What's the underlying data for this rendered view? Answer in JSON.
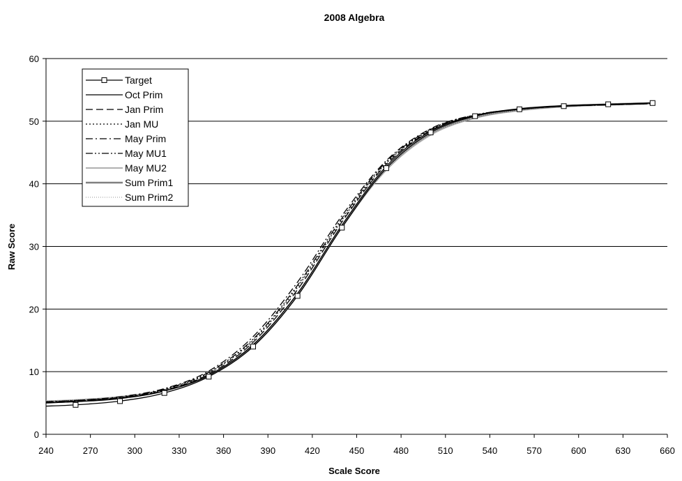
{
  "chart_data": {
    "type": "line",
    "title": "2008 Algebra",
    "xlabel": "Scale Score",
    "ylabel": "Raw Score",
    "xlim": [
      240,
      660
    ],
    "ylim": [
      0,
      60
    ],
    "xticks": [
      240,
      270,
      300,
      330,
      360,
      390,
      420,
      450,
      480,
      510,
      540,
      570,
      600,
      630,
      660
    ],
    "yticks": [
      0,
      10,
      20,
      30,
      40,
      50,
      60
    ],
    "grid": "horizontal",
    "legend_position": "top-left",
    "x": [
      240,
      260,
      290,
      320,
      350,
      380,
      410,
      440,
      470,
      500,
      530,
      560,
      590,
      620,
      650
    ],
    "series": [
      {
        "name": "Target",
        "style": "solid-square-markers",
        "color": "#000000",
        "values": [
          4.5,
          4.7,
          5.3,
          6.6,
          9.2,
          14.0,
          22.1,
          33.0,
          42.5,
          48.2,
          50.8,
          51.9,
          52.4,
          52.7,
          52.9
        ]
      },
      {
        "name": "Oct Prim",
        "style": "solid",
        "color": "#000000",
        "values": [
          5.0,
          5.2,
          5.7,
          6.9,
          9.4,
          14.3,
          22.5,
          33.4,
          42.8,
          48.4,
          50.9,
          52.0,
          52.5,
          52.7,
          52.9
        ]
      },
      {
        "name": "Jan Prim",
        "style": "dash",
        "color": "#000000",
        "values": [
          5.1,
          5.3,
          5.8,
          7.0,
          9.6,
          14.7,
          23.1,
          33.9,
          43.1,
          48.5,
          50.9,
          51.9,
          52.4,
          52.6,
          52.8
        ]
      },
      {
        "name": "Jan MU",
        "style": "dot",
        "color": "#000000",
        "values": [
          5.1,
          5.3,
          5.8,
          7.1,
          9.8,
          15.0,
          23.5,
          34.2,
          43.3,
          48.6,
          50.9,
          51.9,
          52.4,
          52.6,
          52.8
        ]
      },
      {
        "name": "May Prim",
        "style": "dashdot",
        "color": "#000000",
        "values": [
          5.2,
          5.4,
          6.0,
          7.3,
          10.1,
          15.6,
          24.3,
          34.9,
          43.7,
          48.8,
          51.0,
          51.9,
          52.4,
          52.6,
          52.8
        ]
      },
      {
        "name": "May MU1",
        "style": "dashdotdot",
        "color": "#000000",
        "values": [
          5.2,
          5.4,
          5.9,
          7.2,
          9.9,
          15.2,
          23.8,
          34.5,
          43.5,
          48.7,
          51.0,
          51.9,
          52.4,
          52.6,
          52.8
        ]
      },
      {
        "name": "May MU2",
        "style": "solid-light",
        "color": "#b0b0b0",
        "values": [
          5.3,
          5.5,
          6.0,
          7.1,
          9.5,
          14.3,
          22.4,
          33.1,
          42.2,
          47.8,
          50.5,
          51.7,
          52.3,
          52.6,
          52.8
        ]
      },
      {
        "name": "Sum Prim1",
        "style": "solid-thick-grey",
        "color": "#808080",
        "values": [
          5.2,
          5.4,
          5.9,
          7.0,
          9.4,
          14.2,
          22.3,
          33.2,
          42.4,
          48.0,
          50.6,
          51.8,
          52.4,
          52.7,
          52.9
        ]
      },
      {
        "name": "Sum Prim2",
        "style": "dotted-light",
        "color": "#b8b8b8",
        "values": [
          5.3,
          5.5,
          6.0,
          7.1,
          9.5,
          14.3,
          22.3,
          33.1,
          42.3,
          47.9,
          50.6,
          51.8,
          52.4,
          52.7,
          52.9
        ]
      }
    ]
  }
}
